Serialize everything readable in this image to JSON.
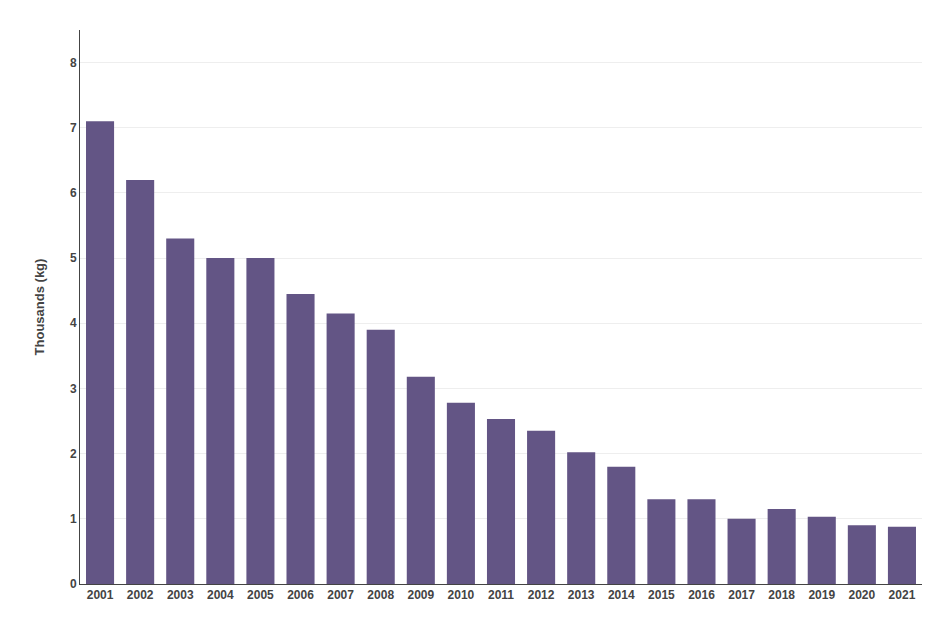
{
  "chart_data": {
    "type": "bar",
    "ylabel": "Thousands (kg)",
    "categories": [
      "2001",
      "2002",
      "2003",
      "2004",
      "2005",
      "2006",
      "2007",
      "2008",
      "2009",
      "2010",
      "2011",
      "2012",
      "2013",
      "2014",
      "2015",
      "2016",
      "2017",
      "2018",
      "2019",
      "2020",
      "2021"
    ],
    "values": [
      7.1,
      6.2,
      5.3,
      5.0,
      5.0,
      4.45,
      4.15,
      3.9,
      3.18,
      2.78,
      2.53,
      2.35,
      2.02,
      1.8,
      1.3,
      1.3,
      1.0,
      1.15,
      1.03,
      0.9,
      0.88
    ],
    "color": "#635585",
    "ylim": [
      0,
      8.5
    ],
    "yticks": [
      0,
      1,
      2,
      3,
      4,
      5,
      6,
      7,
      8
    ],
    "grid": true
  }
}
